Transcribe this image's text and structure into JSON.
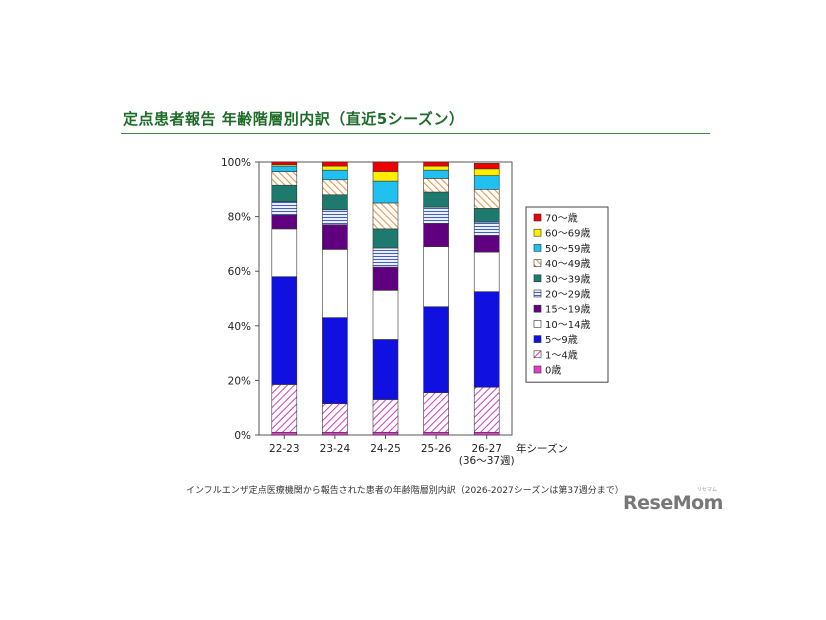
{
  "page": {
    "title": "定点患者報告 年齢階層別内訳（直近5シーズン）",
    "caption": "インフルエンザ定点医療機関から報告された患者の年齢階層別内訳（2026-2027シーズンは第37週分まで）",
    "logo": "ReseMom",
    "logo_sub": "リセマム",
    "accent_color": "#1f6b2a"
  },
  "chart_data": {
    "type": "bar",
    "stacked": true,
    "percent": true,
    "categories": [
      "22-23",
      "23-24",
      "24-25",
      "25-26",
      "26-27"
    ],
    "category_sublabels": [
      "",
      "",
      "",
      "",
      "(36〜37週)"
    ],
    "xlabel": "年シーズン",
    "yticks": [
      "0%",
      "20%",
      "40%",
      "60%",
      "80%",
      "100%"
    ],
    "ylim": [
      0,
      100
    ],
    "legend_position": "right",
    "series": [
      {
        "name": "0歳",
        "color": "#e040c8",
        "pattern": "solid",
        "values": [
          1,
          1,
          1,
          1,
          1
        ]
      },
      {
        "name": "1〜4歳",
        "color": "#d040c0",
        "pattern": "diag",
        "values": [
          17.5,
          10.5,
          12,
          14.5,
          16.5
        ]
      },
      {
        "name": "5〜9歳",
        "color": "#1010e0",
        "pattern": "solid",
        "values": [
          39.5,
          31.5,
          22,
          31.5,
          35
        ]
      },
      {
        "name": "10〜14歳",
        "color": "#ffffff",
        "pattern": "solid",
        "values": [
          17.5,
          25,
          18,
          22,
          14.5
        ]
      },
      {
        "name": "15〜19歳",
        "color": "#600080",
        "pattern": "solid",
        "values": [
          5,
          9,
          8.5,
          8.5,
          6
        ]
      },
      {
        "name": "20〜29歳",
        "color": "#4060c0",
        "pattern": "hlines",
        "values": [
          5,
          5.5,
          7,
          6,
          5
        ]
      },
      {
        "name": "30〜39歳",
        "color": "#1e7a6e",
        "pattern": "solid",
        "values": [
          6,
          5.5,
          7,
          5.5,
          5
        ]
      },
      {
        "name": "40〜49歳",
        "color": "#e09850",
        "pattern": "diag2",
        "values": [
          5,
          5.5,
          9.5,
          5,
          7
        ]
      },
      {
        "name": "50〜59歳",
        "color": "#20c0f0",
        "pattern": "solid",
        "values": [
          2,
          3.5,
          8,
          3,
          5
        ]
      },
      {
        "name": "60〜69歳",
        "color": "#ffee00",
        "pattern": "solid",
        "values": [
          0.5,
          1.5,
          3.5,
          1.5,
          2.5
        ]
      },
      {
        "name": "70〜歳",
        "color": "#ee0000",
        "pattern": "solid",
        "values": [
          1,
          1.5,
          3.5,
          1.5,
          2
        ]
      }
    ]
  }
}
